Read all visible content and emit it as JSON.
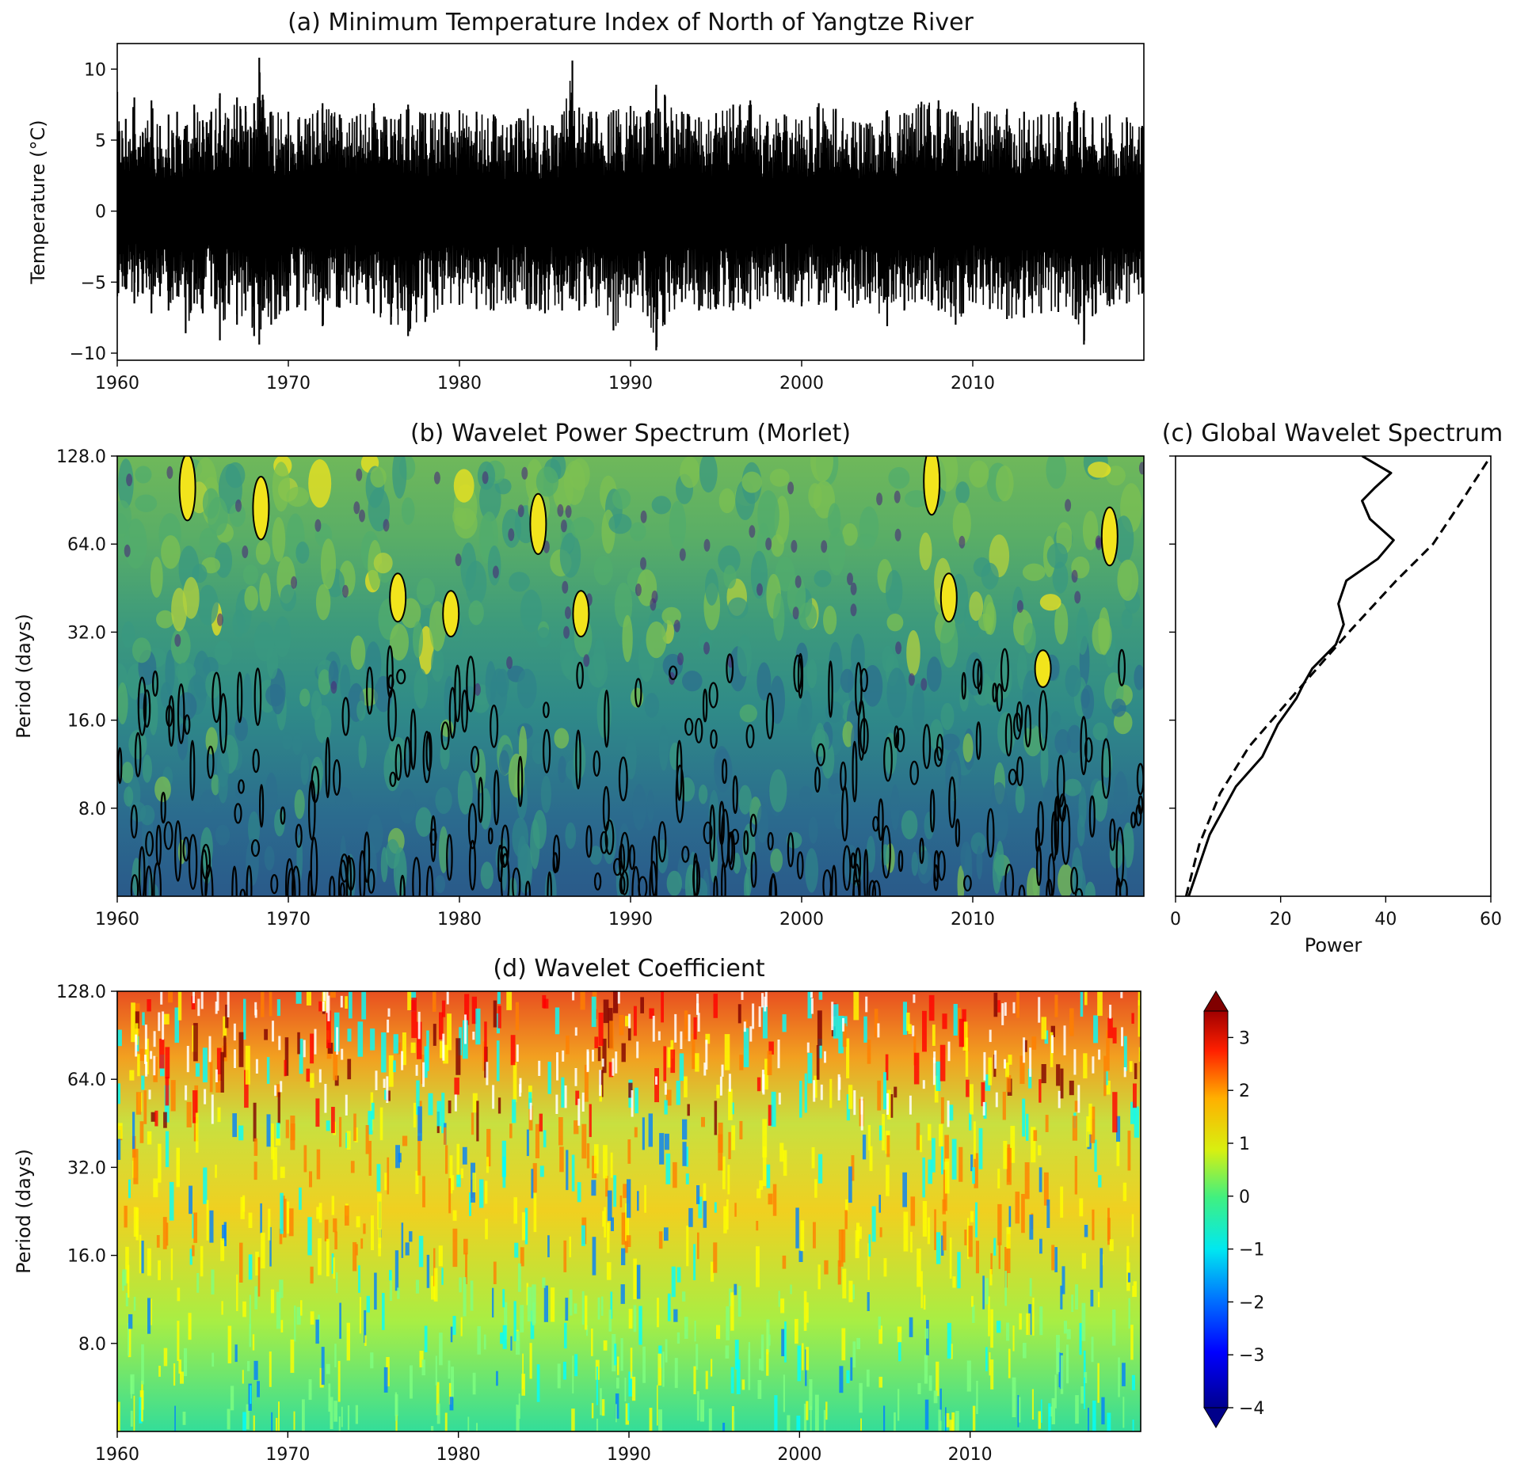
{
  "chart_data": [
    {
      "id": "a",
      "type": "line",
      "title": "(a) Minimum Temperature Index of North of Yangtze River",
      "xlabel": "",
      "ylabel": "Temperature (°C)",
      "xlim": [
        1960,
        2020
      ],
      "ylim": [
        -10.5,
        11.8
      ],
      "xticks": [
        1960,
        1970,
        1980,
        1990,
        2000,
        2010
      ],
      "yticks": [
        -10,
        -5,
        0,
        5,
        10
      ],
      "series": [
        {
          "color": "#000000",
          "x": [
            1960.0,
            1960.5,
            1961.0,
            1961.5,
            1962.0,
            1962.5,
            1963.0,
            1963.5,
            1964.0,
            1964.5,
            1965.0,
            1965.5,
            1966.0,
            1966.5,
            1967.0,
            1967.5,
            1968.0,
            1968.3,
            1968.5,
            1969.0,
            1970.0,
            1971.0,
            1972.0,
            1973.0,
            1974.0,
            1975.0,
            1976.0,
            1977.0,
            1978.0,
            1979.0,
            1980.0,
            1981.0,
            1982.0,
            1983.0,
            1984.0,
            1985.0,
            1986.0,
            1986.6,
            1987.0,
            1988.0,
            1989.0,
            1990.0,
            1991.0,
            1991.5,
            1992.0,
            1993.0,
            1994.0,
            1995.0,
            1996.0,
            1997.0,
            1998.0,
            1999.0,
            2000.0,
            2001.0,
            2002.0,
            2003.0,
            2004.0,
            2005.0,
            2006.0,
            2007.0,
            2008.0,
            2009.0,
            2010.0,
            2011.0,
            2012.0,
            2013.0,
            2014.0,
            2015.0,
            2016.0,
            2016.5,
            2017.0,
            2018.0,
            2019.0,
            2019.9
          ],
          "ymax": [
            8.4,
            6.5,
            8.0,
            5.5,
            7.8,
            6.0,
            6.8,
            7.0,
            6.0,
            7.5,
            6.4,
            7.0,
            8.3,
            6.5,
            8.0,
            7.4,
            7.6,
            10.8,
            8.2,
            7.0,
            7.0,
            6.5,
            7.6,
            6.8,
            6.7,
            7.6,
            6.5,
            7.5,
            6.9,
            7.0,
            7.1,
            7.0,
            6.8,
            6.1,
            7.2,
            6.0,
            6.8,
            10.6,
            7.3,
            7.0,
            7.1,
            7.4,
            7.0,
            8.9,
            8.2,
            7.0,
            6.6,
            6.9,
            7.5,
            7.8,
            6.3,
            6.8,
            6.4,
            7.6,
            7.2,
            6.3,
            6.2,
            7.1,
            6.9,
            7.7,
            7.8,
            7.0,
            7.6,
            7.0,
            7.2,
            7.0,
            6.8,
            7.0,
            7.7,
            7.1,
            6.6,
            6.8,
            6.6,
            6.0
          ],
          "ymin": [
            -6.0,
            -5.5,
            -6.5,
            -5.8,
            -7.2,
            -6.0,
            -7.0,
            -6.0,
            -8.6,
            -6.5,
            -7.2,
            -6.0,
            -9.1,
            -6.5,
            -8.0,
            -7.0,
            -8.8,
            -9.4,
            -7.0,
            -8.0,
            -7.0,
            -7.0,
            -8.1,
            -6.8,
            -6.6,
            -7.2,
            -8.0,
            -8.8,
            -7.8,
            -6.6,
            -6.6,
            -6.9,
            -7.0,
            -6.5,
            -6.9,
            -7.2,
            -7.0,
            -6.2,
            -7.0,
            -6.8,
            -8.4,
            -6.8,
            -7.4,
            -9.8,
            -8.0,
            -6.4,
            -7.0,
            -6.9,
            -7.0,
            -6.9,
            -6.0,
            -6.4,
            -6.7,
            -6.6,
            -7.0,
            -6.8,
            -6.5,
            -8.1,
            -7.0,
            -6.2,
            -7.0,
            -8.0,
            -6.4,
            -6.9,
            -7.6,
            -7.5,
            -7.2,
            -7.1,
            -7.6,
            -9.4,
            -7.4,
            -6.7,
            -6.5,
            -5.8
          ]
        }
      ]
    },
    {
      "id": "b",
      "type": "heatmap",
      "title": "(b) Wavelet Power Spectrum (Morlet)",
      "xlabel": "",
      "ylabel": "Period (days)",
      "xlim": [
        1960,
        2020
      ],
      "ylim": [
        4,
        128
      ],
      "yscale": "log2",
      "xticks": [
        1960,
        1970,
        1980,
        1990,
        2000,
        2010
      ],
      "yticks": [
        "8.0",
        "16.0",
        "32.0",
        "64.0",
        "128.0"
      ],
      "colormap": [
        "#2a5d8c",
        "#2c6f8d",
        "#2f838a",
        "#3a9880",
        "#52ac6c",
        "#7cc052",
        "#b4d23c",
        "#f2e41c"
      ],
      "significance_contours": "black",
      "notable_significant_regions": [
        {
          "x": 1964.1,
          "period": 100
        },
        {
          "x": 1968.4,
          "period": 85
        },
        {
          "x": 1976.4,
          "period": 42
        },
        {
          "x": 1979.5,
          "period": 37
        },
        {
          "x": 1984.6,
          "period": 75
        },
        {
          "x": 1987.1,
          "period": 37
        },
        {
          "x": 2007.6,
          "period": 105
        },
        {
          "x": 2008.6,
          "period": 42
        },
        {
          "x": 2014.1,
          "period": 24
        },
        {
          "x": 2018.0,
          "period": 68
        }
      ]
    },
    {
      "id": "c",
      "type": "line",
      "title": "(c) Global Wavelet Spectrum",
      "xlabel": "Power",
      "ylabel": "",
      "xlim": [
        0,
        60
      ],
      "ylim": [
        4,
        128
      ],
      "yscale": "log2",
      "xticks": [
        0,
        20,
        40,
        60
      ],
      "series": [
        {
          "style": "solid",
          "power": [
            2.5,
            6.5,
            11.5,
            16.5,
            19.5,
            23.0,
            24.5,
            26.0,
            30.5,
            32.0,
            31.0,
            32.5,
            38.5,
            41.5,
            37.0,
            35.5,
            38.0,
            41.0,
            35.5
          ],
          "period": [
            4.0,
            6.5,
            9.5,
            12.0,
            15.5,
            19.0,
            21.5,
            24.0,
            29.0,
            34.0,
            40.0,
            48.0,
            57.0,
            66.0,
            78.0,
            90.0,
            100.0,
            112.0,
            128.0
          ]
        },
        {
          "style": "dashed",
          "power": [
            2.0,
            4.5,
            8.5,
            14.0,
            23.0,
            33.0,
            42.0,
            49.0,
            54.5,
            60.0
          ],
          "period": [
            4.0,
            6.0,
            9.0,
            13.0,
            20.0,
            32.0,
            48.0,
            64.0,
            90.0,
            128.0
          ]
        }
      ]
    },
    {
      "id": "d",
      "type": "heatmap",
      "title": "(d) Wavelet Coefficient",
      "xlabel": "",
      "ylabel": "Period (days)",
      "xlim": [
        1960,
        2020
      ],
      "ylim": [
        4,
        128
      ],
      "yscale": "log2",
      "xticks": [
        1960,
        1970,
        1980,
        1990,
        2000,
        2010
      ],
      "yticks": [
        "8.0",
        "16.0",
        "32.0",
        "64.0",
        "128.0"
      ],
      "colormap": [
        "#00008f",
        "#0000ff",
        "#0080ff",
        "#00ffff",
        "#80ff80",
        "#ffff00",
        "#ff8000",
        "#ff0000",
        "#800000"
      ],
      "colorbar": {
        "min": -4,
        "max": 3.5,
        "ticks": [
          3,
          2,
          1,
          0,
          -1,
          -2,
          -3,
          -4
        ],
        "tick_labels": [
          "3",
          "2",
          "1",
          "0",
          "−1",
          "−2",
          "−3",
          "−4"
        ],
        "extend": "both"
      }
    }
  ]
}
